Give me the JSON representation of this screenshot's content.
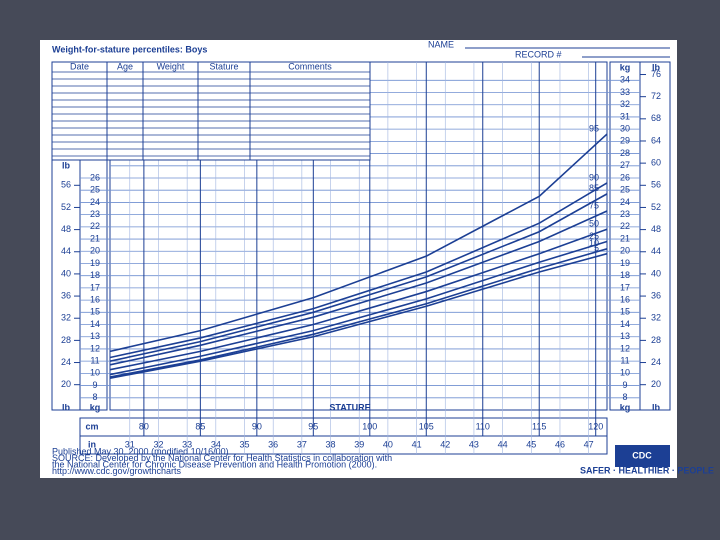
{
  "header": {
    "name_label": "NAME",
    "record_label": "RECORD #"
  },
  "record_table": {
    "headers": [
      "Date",
      "Age",
      "Weight",
      "Stature",
      "Comments"
    ]
  },
  "chart_data": {
    "type": "line",
    "title": "Weight-for-stature percentiles: Boys",
    "x_label": "STATURE",
    "x_unit": "cm",
    "x2_unit": "in",
    "y_unit": "kg",
    "y2_unit": "lb",
    "x": [
      77,
      85,
      95,
      105,
      115,
      121
    ],
    "series": [
      {
        "name": "95",
        "color": "#1c3f94",
        "values": [
          11.8,
          13.5,
          16.2,
          19.6,
          24.5,
          29.6
        ]
      },
      {
        "name": "90",
        "color": "#1c3f94",
        "values": [
          11.3,
          12.9,
          15.3,
          18.3,
          22.3,
          25.6
        ]
      },
      {
        "name": "85",
        "color": "#1c3f94",
        "values": [
          11.0,
          12.6,
          15.0,
          17.9,
          21.6,
          24.7
        ]
      },
      {
        "name": "75",
        "color": "#1c3f94",
        "values": [
          10.7,
          12.3,
          14.6,
          17.4,
          20.8,
          23.3
        ]
      },
      {
        "name": "50",
        "color": "#1c3f94",
        "values": [
          10.3,
          11.8,
          14.0,
          16.7,
          19.8,
          21.8
        ]
      },
      {
        "name": "25",
        "color": "#1c3f94",
        "values": [
          9.9,
          11.4,
          13.5,
          16.1,
          19.1,
          20.8
        ]
      },
      {
        "name": "10",
        "color": "#1c3f94",
        "values": [
          9.7,
          11.1,
          13.2,
          15.7,
          18.6,
          20.2
        ]
      },
      {
        "name": "5",
        "color": "#1c3f94",
        "values": [
          9.6,
          11.0,
          13.0,
          15.5,
          18.3,
          19.8
        ]
      }
    ],
    "xlim": [
      77,
      121
    ],
    "xticks": [
      80,
      85,
      90,
      95,
      100,
      105,
      110,
      115,
      120
    ],
    "x2lim": [
      30.31,
      47.64
    ],
    "x2ticks": [
      31,
      32,
      33,
      34,
      35,
      36,
      37,
      38,
      39,
      40,
      41,
      42,
      43,
      44,
      45,
      46,
      47
    ],
    "ylim": [
      7,
      35.5
    ],
    "yticks": [
      8,
      9,
      10,
      11,
      12,
      13,
      14,
      15,
      16,
      17,
      18,
      19,
      20,
      21,
      22,
      23,
      24,
      25,
      26,
      27,
      28,
      29,
      30,
      31,
      32,
      33,
      34
    ],
    "y2lim": [
      15.43,
      78.26
    ],
    "y2ticks": [
      20,
      24,
      28,
      32,
      36,
      40,
      44,
      48,
      52,
      56,
      60,
      64,
      68,
      72,
      76
    ],
    "left_yticks": [
      8,
      9,
      10,
      11,
      12,
      13,
      14,
      15,
      16,
      17,
      18,
      19,
      20,
      21,
      22,
      23,
      24,
      25,
      26
    ],
    "left_y2ticks": [
      20,
      24,
      28,
      32,
      36,
      40,
      44,
      48,
      52,
      56
    ],
    "grid": true
  },
  "footer": {
    "lines": [
      "Published May 30, 2000 (modified 10/16/00).",
      "SOURCE: Developed by the National Center for Health Statistics in collaboration with",
      "the National Center for Chronic Disease Prevention and Health Promotion (2000).",
      "http://www.cdc.gov/growthcharts"
    ]
  },
  "logo": {
    "text": "CDC",
    "tagline": "SAFER · HEALTHIER · PEOPLE"
  }
}
